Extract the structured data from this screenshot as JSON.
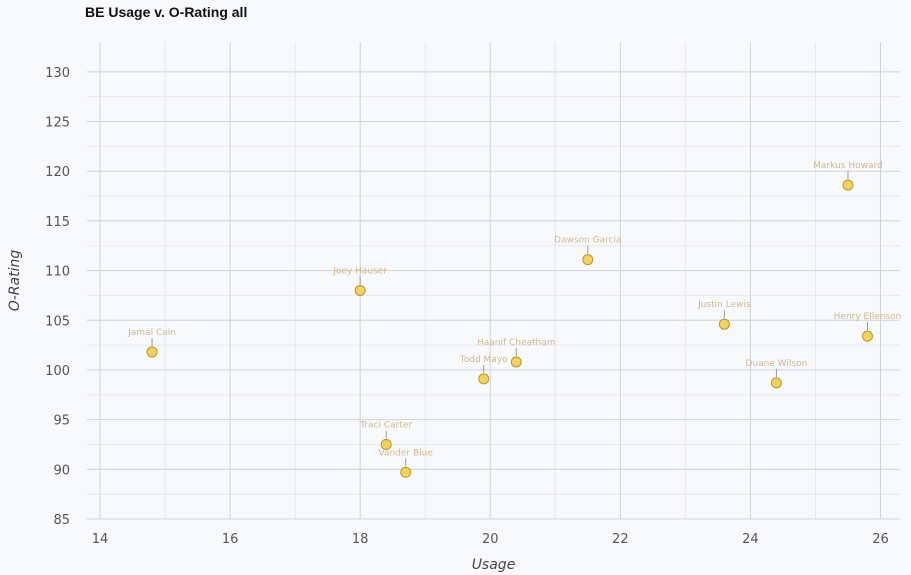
{
  "chart_data": {
    "type": "scatter",
    "title": "BE Usage v. O-Rating all",
    "xlabel": "Usage",
    "ylabel": "O-Rating",
    "xlim": [
      13.8,
      26.3
    ],
    "ylim": [
      85,
      133
    ],
    "xticks": [
      14,
      16,
      18,
      20,
      22,
      24,
      26
    ],
    "yticks": [
      85,
      90,
      95,
      100,
      105,
      110,
      115,
      120,
      125,
      130
    ],
    "grid": true,
    "point_color": "#f5d25a",
    "point_stroke": "#b8962c",
    "label_color": "#d2b98a",
    "points": [
      {
        "label": "Jamal Cain",
        "x": 14.8,
        "y": 101.8
      },
      {
        "label": "Joey Hauser",
        "x": 18.0,
        "y": 108.0
      },
      {
        "label": "Traci Carter",
        "x": 18.4,
        "y": 92.5
      },
      {
        "label": "Vander Blue",
        "x": 18.7,
        "y": 89.7
      },
      {
        "label": "Todd Mayo",
        "x": 19.9,
        "y": 99.1
      },
      {
        "label": "Haanif Cheatham",
        "x": 20.4,
        "y": 100.8
      },
      {
        "label": "Dawson Garcia",
        "x": 21.5,
        "y": 111.1
      },
      {
        "label": "Justin Lewis",
        "x": 23.6,
        "y": 104.6
      },
      {
        "label": "Duane Wilson",
        "x": 24.4,
        "y": 98.7
      },
      {
        "label": "Markus Howard",
        "x": 25.5,
        "y": 118.6
      },
      {
        "label": "Henry Ellenson",
        "x": 25.8,
        "y": 103.4
      }
    ]
  }
}
